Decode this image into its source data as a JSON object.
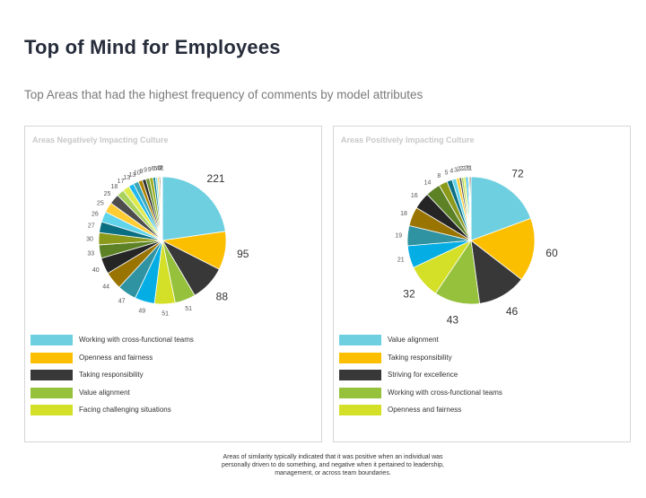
{
  "title": "Top of Mind for Employees",
  "subtitle": "Top Areas that had the highest frequency of comments by model attributes",
  "footnote": "Areas of similarity typically indicated that it was positive when an individual was personally driven to do something, and negative when it pertained to leadership, management, or across team boundaries.",
  "chart_data": [
    {
      "type": "pie",
      "title": "Areas Negatively Impacting Culture",
      "values": [
        221,
        95,
        88,
        51,
        51,
        49,
        47,
        44,
        40,
        33,
        30,
        27,
        26,
        25,
        25,
        18,
        17,
        13,
        13,
        10,
        9,
        9,
        9,
        6,
        5,
        4,
        3,
        2,
        2,
        1
      ],
      "value_labels": [
        "221",
        "95",
        "88",
        "51",
        "51",
        "49",
        "47",
        "44",
        "40",
        "33",
        "30",
        "27",
        "26",
        "25",
        "25",
        "18",
        "17",
        "13",
        "13",
        "10",
        "9",
        "9",
        "9",
        "6",
        "5",
        "4",
        "3",
        "2",
        "2",
        "1"
      ],
      "legend": [
        {
          "label": "Working with cross-functional teams",
          "color": "#6dcfdf"
        },
        {
          "label": "Openness and fairness",
          "color": "#fcbf00"
        },
        {
          "label": "Taking responsibility",
          "color": "#383838"
        },
        {
          "label": "Value alignment",
          "color": "#95c13d"
        },
        {
          "label": "Facing challenging situations",
          "color": "#d4df27"
        }
      ],
      "colors": [
        "#6dcfdf",
        "#fcbf00",
        "#383838",
        "#95c13d",
        "#d4df27",
        "#04aee4",
        "#2f93a2",
        "#9a7400",
        "#252525",
        "#5d8226",
        "#8b9a1b",
        "#0a6f82",
        "#60d4ea",
        "#ffcd33",
        "#4d4d4d",
        "#a8d25b",
        "#deea4a",
        "#1eb8ee",
        "#3aa6b6",
        "#b08400",
        "#303030",
        "#6e9630",
        "#a0ae20",
        "#0c8196",
        "#7ed9ea",
        "#ffd54c",
        "#5c5c5c",
        "#b6da71",
        "#e3ee6a",
        "#3cc2f0"
      ]
    },
    {
      "type": "pie",
      "title": "Areas Positively Impacting Culture",
      "values": [
        72,
        60,
        46,
        43,
        32,
        21,
        19,
        18,
        16,
        14,
        8,
        5,
        4,
        3,
        2,
        2,
        2,
        2,
        1,
        1,
        1
      ],
      "value_labels": [
        "72",
        "60",
        "46",
        "43",
        "32",
        "21",
        "19",
        "18",
        "16",
        "14",
        "8",
        "5",
        "4",
        "3",
        "2",
        "2",
        "2",
        "2",
        "1",
        "1",
        "1"
      ],
      "legend": [
        {
          "label": "Value alignment",
          "color": "#6dcfdf"
        },
        {
          "label": "Taking responsibility",
          "color": "#fcbf00"
        },
        {
          "label": "Striving for excellence",
          "color": "#383838"
        },
        {
          "label": "Working with cross-functional teams",
          "color": "#95c13d"
        },
        {
          "label": "Openness and fairness",
          "color": "#d4df27"
        }
      ],
      "colors": [
        "#6dcfdf",
        "#fcbf00",
        "#383838",
        "#95c13d",
        "#d4df27",
        "#04aee4",
        "#2f93a2",
        "#9a7400",
        "#252525",
        "#5d8226",
        "#8b9a1b",
        "#0a6f82",
        "#60d4ea",
        "#ffcd33",
        "#4d4d4d",
        "#a8d25b",
        "#deea4a",
        "#1eb8ee",
        "#3aa6b6",
        "#b08400",
        "#303030"
      ]
    }
  ]
}
